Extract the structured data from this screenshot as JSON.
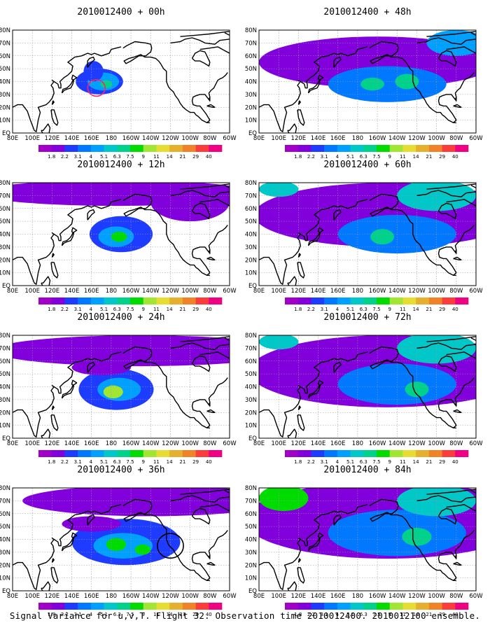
{
  "panels": [
    {
      "title": "2010012400 + 00h",
      "blobs": [
        {
          "lon": 168,
          "lat": 40,
          "rx": 24,
          "ry": 10,
          "v": 2
        },
        {
          "lon": 172,
          "lat": 40,
          "rx": 16,
          "ry": 7,
          "v": 4
        },
        {
          "lon": 162,
          "lat": 48,
          "rx": 10,
          "ry": 8,
          "v": 2
        },
        {
          "lon": 175,
          "lat": 38,
          "rx": 6,
          "ry": 3,
          "v": 6
        }
      ],
      "circles": [
        {
          "lon": 165,
          "lat": 35,
          "r": 4,
          "color": "#ff1e6e"
        }
      ]
    },
    {
      "title": "2010012400 + 12h",
      "blobs": [
        {
          "lon": -170,
          "lat": 40,
          "rx": 32,
          "ry": 14,
          "v": 2
        },
        {
          "lon": -175,
          "lat": 38,
          "rx": 18,
          "ry": 8,
          "v": 4
        },
        {
          "lon": -172,
          "lat": 38,
          "rx": 8,
          "ry": 4,
          "v": 7
        },
        {
          "lon": -175,
          "lat": 72,
          "rx": 140,
          "ry": 10,
          "v": 1
        },
        {
          "lon": -100,
          "lat": 65,
          "rx": 40,
          "ry": 15,
          "v": 1
        }
      ]
    },
    {
      "title": "2010012400 + 24h",
      "blobs": [
        {
          "lon": -175,
          "lat": 38,
          "rx": 38,
          "ry": 16,
          "v": 2
        },
        {
          "lon": -172,
          "lat": 38,
          "rx": 22,
          "ry": 9,
          "v": 4
        },
        {
          "lon": -178,
          "lat": 36,
          "rx": 10,
          "ry": 5,
          "v": 8
        },
        {
          "lon": -150,
          "lat": 68,
          "rx": 150,
          "ry": 12,
          "v": 1
        },
        {
          "lon": 170,
          "lat": 55,
          "rx": 30,
          "ry": 6,
          "v": 1
        }
      ]
    },
    {
      "title": "2010012400 + 36h",
      "blobs": [
        {
          "lon": -165,
          "lat": 38,
          "rx": 55,
          "ry": 18,
          "v": 2
        },
        {
          "lon": -168,
          "lat": 35,
          "rx": 30,
          "ry": 10,
          "v": 4
        },
        {
          "lon": -175,
          "lat": 36,
          "rx": 10,
          "ry": 5,
          "v": 7
        },
        {
          "lon": -148,
          "lat": 32,
          "rx": 8,
          "ry": 4,
          "v": 7
        },
        {
          "lon": -140,
          "lat": 70,
          "rx": 130,
          "ry": 12,
          "v": 1
        },
        {
          "lon": 160,
          "lat": 52,
          "rx": 30,
          "ry": 6,
          "v": 1
        }
      ],
      "circles": [
        {
          "lon": -120,
          "lat": 35,
          "r": 6,
          "color": "#000000"
        }
      ]
    },
    {
      "title": "2010012400 + 48h",
      "blobs": [
        {
          "lon": -160,
          "lat": 55,
          "rx": 120,
          "ry": 20,
          "v": 1
        },
        {
          "lon": -150,
          "lat": 38,
          "rx": 60,
          "ry": 14,
          "v": 3
        },
        {
          "lon": -165,
          "lat": 38,
          "rx": 12,
          "ry": 5,
          "v": 6
        },
        {
          "lon": -130,
          "lat": 40,
          "rx": 12,
          "ry": 6,
          "v": 6
        },
        {
          "lon": -80,
          "lat": 70,
          "rx": 30,
          "ry": 10,
          "v": 4
        }
      ]
    },
    {
      "title": "2010012400 + 60h",
      "blobs": [
        {
          "lon": -150,
          "lat": 55,
          "rx": 135,
          "ry": 25,
          "v": 1
        },
        {
          "lon": -140,
          "lat": 40,
          "rx": 60,
          "ry": 15,
          "v": 3
        },
        {
          "lon": -155,
          "lat": 38,
          "rx": 12,
          "ry": 6,
          "v": 6
        },
        {
          "lon": -100,
          "lat": 70,
          "rx": 40,
          "ry": 12,
          "v": 5
        },
        {
          "lon": 100,
          "lat": 75,
          "rx": 20,
          "ry": 6,
          "v": 5
        }
      ]
    },
    {
      "title": "2010012400 + 72h",
      "blobs": [
        {
          "lon": -150,
          "lat": 52,
          "rx": 140,
          "ry": 28,
          "v": 1
        },
        {
          "lon": -140,
          "lat": 42,
          "rx": 60,
          "ry": 16,
          "v": 3
        },
        {
          "lon": -120,
          "lat": 38,
          "rx": 12,
          "ry": 6,
          "v": 6
        },
        {
          "lon": -100,
          "lat": 70,
          "rx": 40,
          "ry": 12,
          "v": 5
        },
        {
          "lon": 100,
          "lat": 75,
          "rx": 20,
          "ry": 6,
          "v": 5
        }
      ]
    },
    {
      "title": "2010012400 + 84h",
      "blobs": [
        {
          "lon": -150,
          "lat": 55,
          "rx": 145,
          "ry": 30,
          "v": 1
        },
        {
          "lon": -140,
          "lat": 45,
          "rx": 70,
          "ry": 18,
          "v": 3
        },
        {
          "lon": -120,
          "lat": 42,
          "rx": 15,
          "ry": 7,
          "v": 6
        },
        {
          "lon": -100,
          "lat": 70,
          "rx": 40,
          "ry": 12,
          "v": 5
        },
        {
          "lon": 105,
          "lat": 72,
          "rx": 25,
          "ry": 10,
          "v": 7
        }
      ]
    }
  ],
  "lat_ticks": [
    "EQ",
    "10N",
    "20N",
    "30N",
    "40N",
    "50N",
    "60N",
    "70N",
    "80N"
  ],
  "lon_ticks": [
    "80E",
    "100E",
    "120E",
    "140E",
    "160E",
    "180",
    "160W",
    "140W",
    "120W",
    "100W",
    "80W",
    "60W"
  ],
  "colorbar": {
    "labels": [
      "1.8",
      "2.2",
      "3.1",
      "4",
      "5.1",
      "6.3",
      "7.5",
      "9",
      "11",
      "14",
      "21",
      "29",
      "40"
    ],
    "colors": [
      "#a000c8",
      "#8200dc",
      "#1e3cff",
      "#0078ff",
      "#00a0ff",
      "#00c8c8",
      "#00d28c",
      "#00dc00",
      "#a0e632",
      "#e6dc32",
      "#e6af2d",
      "#f08228",
      "#fa3c3c",
      "#f00082"
    ]
  },
  "caption": "Signal Variance for u,v,T. Flight 32. Observation time 2010012400. 2010012100 ensemble."
}
